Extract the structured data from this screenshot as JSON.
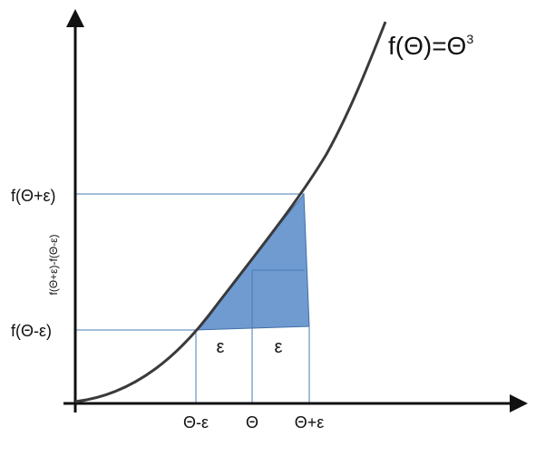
{
  "diagram": {
    "function_label": "f(Θ)=Θ",
    "function_exponent": "3",
    "y_labels": {
      "upper": "f(Θ+ε)",
      "lower": "f(Θ-ε)",
      "difference": "f(Θ+ε)-f(Θ-ε)"
    },
    "x_labels": {
      "left": "Θ-ε",
      "center": "Θ",
      "right": "Θ+ε"
    },
    "interval_labels": {
      "left": "ε",
      "right": "ε"
    },
    "colors": {
      "curve": "#3a3a3a",
      "axes": "#111111",
      "guide_lines": "#4a7bb5",
      "shaded_region": "#6f9bd1",
      "shaded_border": "#3f6fa8"
    }
  }
}
